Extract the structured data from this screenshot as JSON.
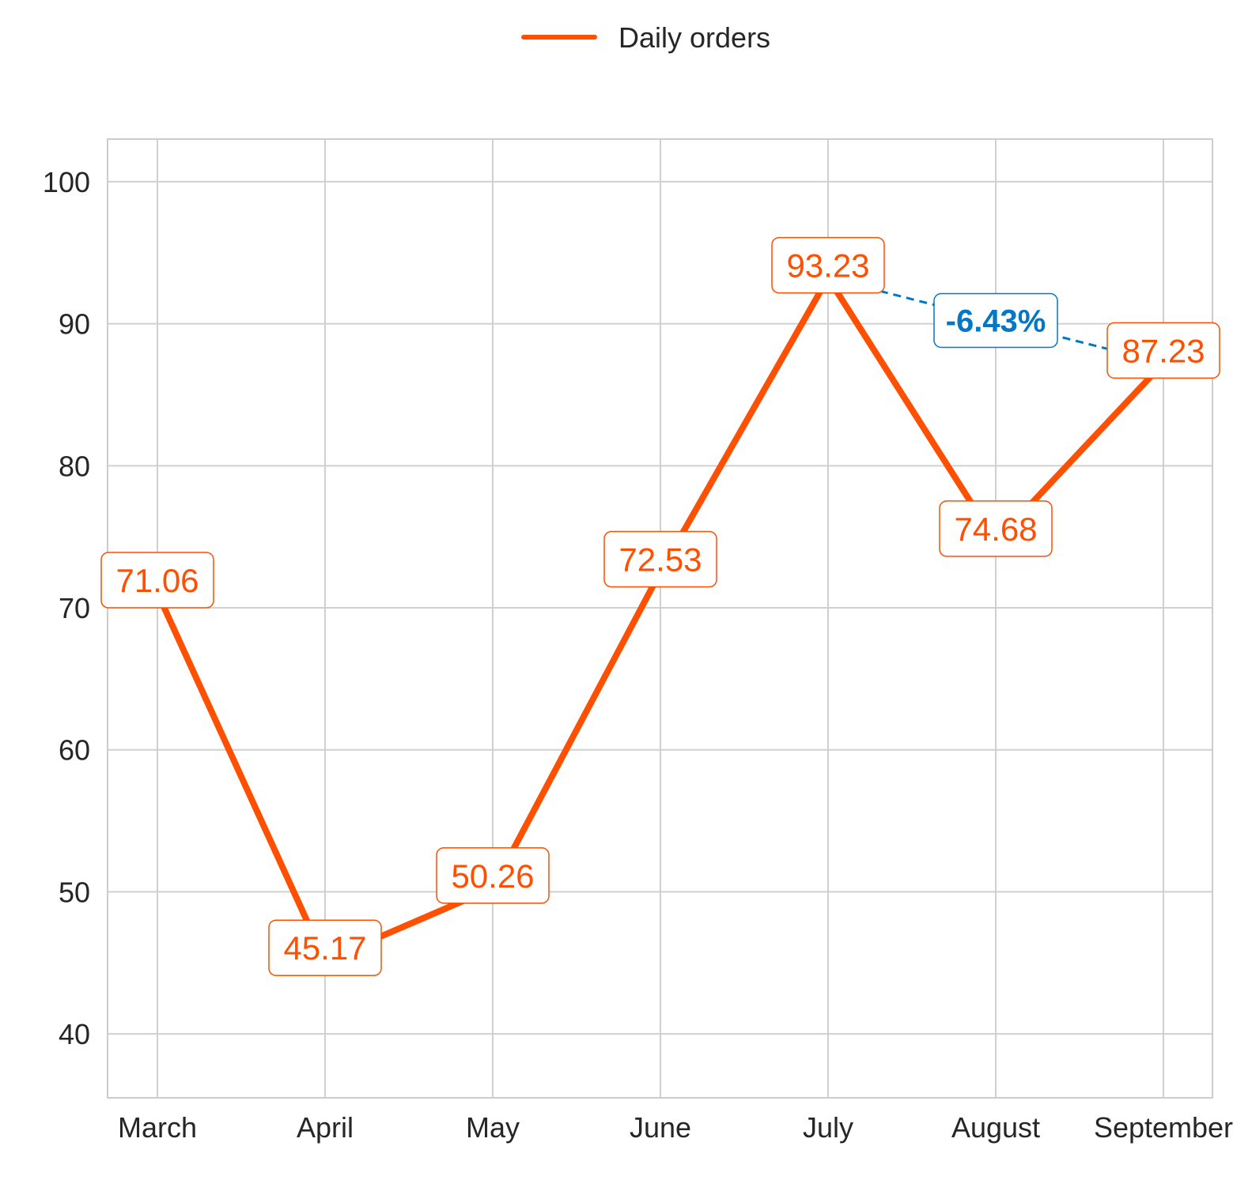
{
  "chart_data": {
    "type": "line",
    "categories": [
      "March",
      "April",
      "May",
      "June",
      "July",
      "August",
      "September"
    ],
    "series": [
      {
        "name": "Daily orders",
        "values": [
          71.06,
          45.17,
          50.26,
          72.53,
          93.23,
          74.68,
          87.23
        ]
      }
    ],
    "data_labels": [
      "71.06",
      "45.17",
      "50.26",
      "72.53",
      "93.23",
      "74.68",
      "87.23"
    ],
    "ylim": [
      35.5,
      103
    ],
    "yticks": [
      40,
      50,
      60,
      70,
      80,
      90,
      100
    ],
    "grid": true,
    "legend_position": "top-center",
    "annotation": {
      "text": "-6.43%",
      "from_category": "July",
      "to_category": "September",
      "from_value": 93.23,
      "to_value": 87.23
    },
    "colors": {
      "line": "#ff4f00",
      "annotation": "#0077c8",
      "grid": "#d0d0d0",
      "text": "#262626"
    }
  }
}
